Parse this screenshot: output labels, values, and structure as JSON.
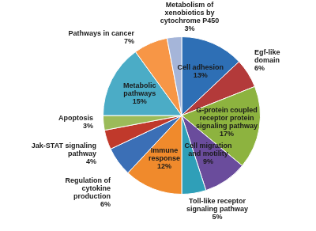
{
  "chart_data": {
    "type": "pie",
    "categories": [
      "Cell adhesion",
      "Egf-like domain",
      "G-protein coupled receptor protein signaling pathway",
      "Cell migration and motility",
      "Toll-like receptor signaling pathway",
      "Immune response",
      "Regulation of cytokine production",
      "Jak-STAT signaling pathway",
      "Apoptosis",
      "Metabolic pathways",
      "Pathways in cancer",
      "Metabolism of xenobiotics by cytochrome P450"
    ],
    "values": [
      13,
      6,
      17,
      9,
      5,
      12,
      6,
      4,
      3,
      15,
      7,
      3
    ],
    "value_labels": [
      "13%",
      "6%",
      "17%",
      "9%",
      "5%",
      "12%",
      "6%",
      "4%",
      "3%",
      "15%",
      "7%",
      "3%"
    ],
    "colors": [
      "#2e6fb5",
      "#b33a3a",
      "#8db33f",
      "#6a4c9c",
      "#2f9fb8",
      "#f08a2c",
      "#3b6fb6",
      "#c0392b",
      "#9bbb59",
      "#4bacc6",
      "#f79646",
      "#a5b5d9"
    ],
    "data_labels": true,
    "grid": false
  }
}
